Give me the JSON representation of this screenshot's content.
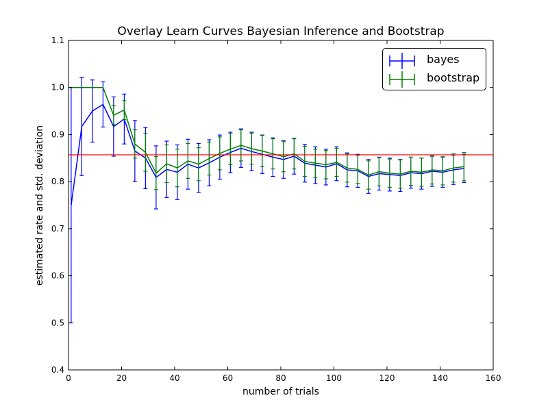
{
  "chart_data": {
    "type": "line",
    "title": "Overlay Learn Curves Bayesian Inference and Bootstrap",
    "xlabel": "number of trials",
    "ylabel": "estimated rate and std. deviation",
    "xlim": [
      0,
      160
    ],
    "ylim": [
      0.4,
      1.1
    ],
    "xticks": [
      "0",
      "20",
      "40",
      "60",
      "80",
      "100",
      "120",
      "140",
      "160"
    ],
    "yticks": [
      "0.4",
      "0.5",
      "0.6",
      "0.7",
      "0.8",
      "0.9",
      "1.0",
      "1.1"
    ],
    "grid": false,
    "legend_position": "top-right",
    "reference_line": {
      "y": 0.857,
      "color": "#ff0000"
    },
    "x": [
      1,
      5,
      9,
      13,
      17,
      21,
      25,
      29,
      33,
      37,
      41,
      45,
      49,
      53,
      57,
      61,
      65,
      69,
      73,
      77,
      81,
      85,
      89,
      93,
      97,
      101,
      105,
      109,
      113,
      117,
      121,
      125,
      129,
      133,
      137,
      141,
      145,
      149
    ],
    "series": [
      {
        "name": "bayes",
        "color": "#0000ff",
        "values": [
          0.75,
          0.917,
          0.95,
          0.964,
          0.917,
          0.933,
          0.865,
          0.85,
          0.809,
          0.826,
          0.82,
          0.837,
          0.829,
          0.84,
          0.852,
          0.862,
          0.871,
          0.864,
          0.858,
          0.852,
          0.847,
          0.854,
          0.839,
          0.835,
          0.831,
          0.838,
          0.825,
          0.823,
          0.811,
          0.817,
          0.815,
          0.813,
          0.819,
          0.817,
          0.822,
          0.82,
          0.825,
          0.828
        ],
        "errors": [
          0.25,
          0.104,
          0.066,
          0.048,
          0.063,
          0.053,
          0.065,
          0.065,
          0.067,
          0.06,
          0.058,
          0.053,
          0.052,
          0.049,
          0.047,
          0.043,
          0.041,
          0.041,
          0.041,
          0.041,
          0.04,
          0.038,
          0.04,
          0.039,
          0.038,
          0.036,
          0.036,
          0.035,
          0.036,
          0.035,
          0.035,
          0.034,
          0.033,
          0.033,
          0.032,
          0.032,
          0.031,
          0.03
        ]
      },
      {
        "name": "bootstrap",
        "color": "#008000",
        "values": [
          1.0,
          1.0,
          1.0,
          1.0,
          0.941,
          0.952,
          0.88,
          0.862,
          0.818,
          0.838,
          0.829,
          0.844,
          0.837,
          0.849,
          0.86,
          0.869,
          0.877,
          0.87,
          0.865,
          0.859,
          0.853,
          0.859,
          0.843,
          0.839,
          0.836,
          0.841,
          0.829,
          0.826,
          0.814,
          0.821,
          0.818,
          0.816,
          0.822,
          0.82,
          0.825,
          0.823,
          0.829,
          0.832
        ],
        "errors": [
          0.0,
          0.0,
          0.0,
          0.0,
          0.02,
          0.02,
          0.03,
          0.04,
          0.035,
          0.04,
          0.04,
          0.037,
          0.035,
          0.035,
          0.035,
          0.033,
          0.033,
          0.033,
          0.033,
          0.032,
          0.032,
          0.032,
          0.032,
          0.03,
          0.03,
          0.03,
          0.03,
          0.03,
          0.03,
          0.03,
          0.03,
          0.03,
          0.03,
          0.03,
          0.03,
          0.03,
          0.03,
          0.03
        ]
      }
    ]
  }
}
